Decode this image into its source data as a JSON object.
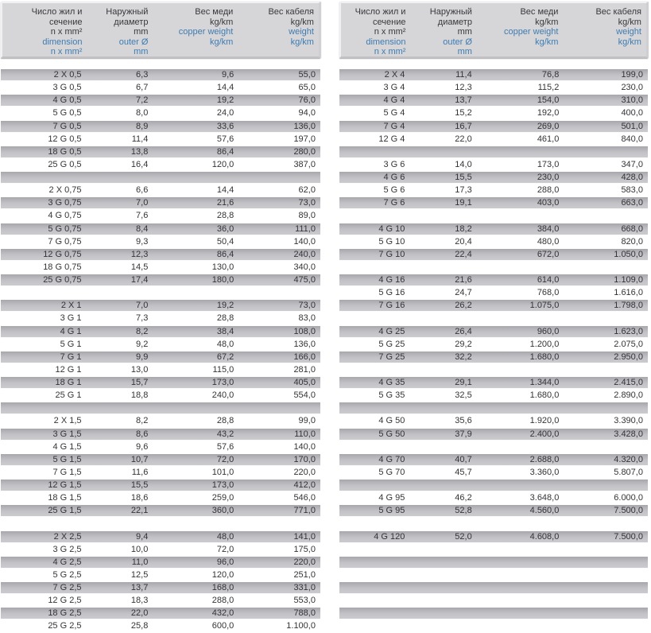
{
  "colors": {
    "header_bg": "#d6d6d8",
    "row_stripe": "#c3c3c7",
    "text_primary": "#343438",
    "text_accent_blue": "#3e7cb1"
  },
  "header": {
    "columns": [
      {
        "name": "dimension",
        "black": [
          "Число жил и",
          "сечение",
          "n x mm²"
        ],
        "blue": [
          "dimension",
          "n x mm²"
        ]
      },
      {
        "name": "outer-diameter",
        "black": [
          "Наружный",
          "диаметр",
          "mm"
        ],
        "blue": [
          "outer Ø",
          "mm"
        ]
      },
      {
        "name": "copper-weight",
        "black": [
          "Вес меди",
          "kg/km"
        ],
        "blue": [
          "copper weight",
          "kg/km"
        ]
      },
      {
        "name": "cable-weight",
        "black": [
          "Вес кабеля",
          "kg/km"
        ],
        "blue": [
          "weight",
          "kg/km"
        ]
      }
    ]
  },
  "left_table": {
    "rows": [
      [
        "2 X 0,5",
        "6,3",
        "9,6",
        "55,0"
      ],
      [
        "3 G 0,5",
        "6,7",
        "14,4",
        "65,0"
      ],
      [
        "4 G 0,5",
        "7,2",
        "19,2",
        "76,0"
      ],
      [
        "5 G 0,5",
        "8,0",
        "24,0",
        "94,0"
      ],
      [
        "7 G 0,5",
        "8,9",
        "33,6",
        "136,0"
      ],
      [
        "12 G 0,5",
        "11,4",
        "57,6",
        "197,0"
      ],
      [
        "18 G 0,5",
        "13,8",
        "86,4",
        "280,0"
      ],
      [
        "25 G 0,5",
        "16,4",
        "120,0",
        "387,0"
      ],
      [],
      [
        "2 X 0,75",
        "6,6",
        "14,4",
        "62,0"
      ],
      [
        "3 G 0,75",
        "7,0",
        "21,6",
        "73,0"
      ],
      [
        "4 G 0,75",
        "7,6",
        "28,8",
        "89,0"
      ],
      [
        "5 G 0,75",
        "8,4",
        "36,0",
        "111,0"
      ],
      [
        "7 G 0,75",
        "9,3",
        "50,4",
        "140,0"
      ],
      [
        "12 G 0,75",
        "12,3",
        "86,4",
        "240,0"
      ],
      [
        "18 G 0,75",
        "14,5",
        "130,0",
        "340,0"
      ],
      [
        "25 G 0,75",
        "17,4",
        "180,0",
        "475,0"
      ],
      [],
      [
        "2 X 1",
        "7,0",
        "19,2",
        "73,0"
      ],
      [
        "3 G 1",
        "7,3",
        "28,8",
        "83,0"
      ],
      [
        "4 G 1",
        "8,2",
        "38,4",
        "108,0"
      ],
      [
        "5 G 1",
        "9,2",
        "48,0",
        "136,0"
      ],
      [
        "7 G 1",
        "9,9",
        "67,2",
        "166,0"
      ],
      [
        "12 G 1",
        "13,0",
        "115,0",
        "281,0"
      ],
      [
        "18 G 1",
        "15,7",
        "173,0",
        "405,0"
      ],
      [
        "25 G 1",
        "18,8",
        "240,0",
        "554,0"
      ],
      [],
      [
        "2 X 1,5",
        "8,2",
        "28,8",
        "99,0"
      ],
      [
        "3 G 1,5",
        "8,6",
        "43,2",
        "110,0"
      ],
      [
        "4 G 1,5",
        "9,6",
        "57,6",
        "140,0"
      ],
      [
        "5 G 1,5",
        "10,7",
        "72,0",
        "170,0"
      ],
      [
        "7 G 1,5",
        "11,6",
        "101,0",
        "220,0"
      ],
      [
        "12 G 1,5",
        "15,5",
        "173,0",
        "412,0"
      ],
      [
        "18 G 1,5",
        "18,6",
        "259,0",
        "546,0"
      ],
      [
        "25 G 1,5",
        "22,1",
        "360,0",
        "771,0"
      ],
      [],
      [
        "2 X 2,5",
        "9,4",
        "48,0",
        "141,0"
      ],
      [
        "3 G 2,5",
        "10,0",
        "72,0",
        "175,0"
      ],
      [
        "4 G 2,5",
        "11,0",
        "96,0",
        "220,0"
      ],
      [
        "5 G 2,5",
        "12,5",
        "120,0",
        "251,0"
      ],
      [
        "7 G 2,5",
        "13,7",
        "168,0",
        "331,0"
      ],
      [
        "12 G 2,5",
        "18,3",
        "288,0",
        "553,0"
      ],
      [
        "18 G 2,5",
        "22,0",
        "432,0",
        "788,0"
      ],
      [
        "25 G 2,5",
        "25,8",
        "600,0",
        "1.100,0"
      ]
    ]
  },
  "right_table": {
    "rows": [
      [
        "2 X 4",
        "11,4",
        "76,8",
        "199,0"
      ],
      [
        "3 G 4",
        "12,3",
        "115,2",
        "230,0"
      ],
      [
        "4 G 4",
        "13,7",
        "154,0",
        "310,0"
      ],
      [
        "5 G 4",
        "15,2",
        "192,0",
        "400,0"
      ],
      [
        "7 G 4",
        "16,7",
        "269,0",
        "501,0"
      ],
      [
        "12 G 4",
        "22,0",
        "461,0",
        "840,0"
      ],
      [],
      [
        "3 G 6",
        "14,0",
        "173,0",
        "347,0"
      ],
      [
        "4 G 6",
        "15,5",
        "230,0",
        "428,0"
      ],
      [
        "5 G 6",
        "17,3",
        "288,0",
        "583,0"
      ],
      [
        "7 G 6",
        "19,1",
        "403,0",
        "663,0"
      ],
      [],
      [
        "4 G 10",
        "18,2",
        "384,0",
        "668,0"
      ],
      [
        "5 G 10",
        "20,4",
        "480,0",
        "820,0"
      ],
      [
        "7 G 10",
        "22,4",
        "672,0",
        "1.050,0"
      ],
      [],
      [
        "4 G 16",
        "21,6",
        "614,0",
        "1.109,0"
      ],
      [
        "5 G 16",
        "24,7",
        "768,0",
        "1.616,0"
      ],
      [
        "7 G 16",
        "26,2",
        "1.075,0",
        "1.798,0"
      ],
      [],
      [
        "4 G 25",
        "26,4",
        "960,0",
        "1.623,0"
      ],
      [
        "5 G 25",
        "29,2",
        "1.200,0",
        "2.075,0"
      ],
      [
        "7 G 25",
        "32,2",
        "1.680,0",
        "2.950,0"
      ],
      [],
      [
        "4 G 35",
        "29,1",
        "1.344,0",
        "2.415,0"
      ],
      [
        "5 G 35",
        "32,5",
        "1.680,0",
        "2.890,0"
      ],
      [],
      [
        "4 G 50",
        "35,6",
        "1.920,0",
        "3.390,0"
      ],
      [
        "5 G 50",
        "37,9",
        "2.400,0",
        "3.428,0"
      ],
      [],
      [
        "4 G 70",
        "40,7",
        "2.688,0",
        "4.320,0"
      ],
      [
        "5 G 70",
        "45,7",
        "3.360,0",
        "5.807,0"
      ],
      [],
      [
        "4 G 95",
        "46,2",
        "3.648,0",
        "6.000,0"
      ],
      [
        "5 G 95",
        "52,8",
        "4.560,0",
        "7.500,0"
      ],
      [],
      [
        "4 G 120",
        "52,0",
        "4.608,0",
        "7.500,0"
      ],
      [],
      [],
      [],
      [],
      [],
      [],
      []
    ]
  }
}
